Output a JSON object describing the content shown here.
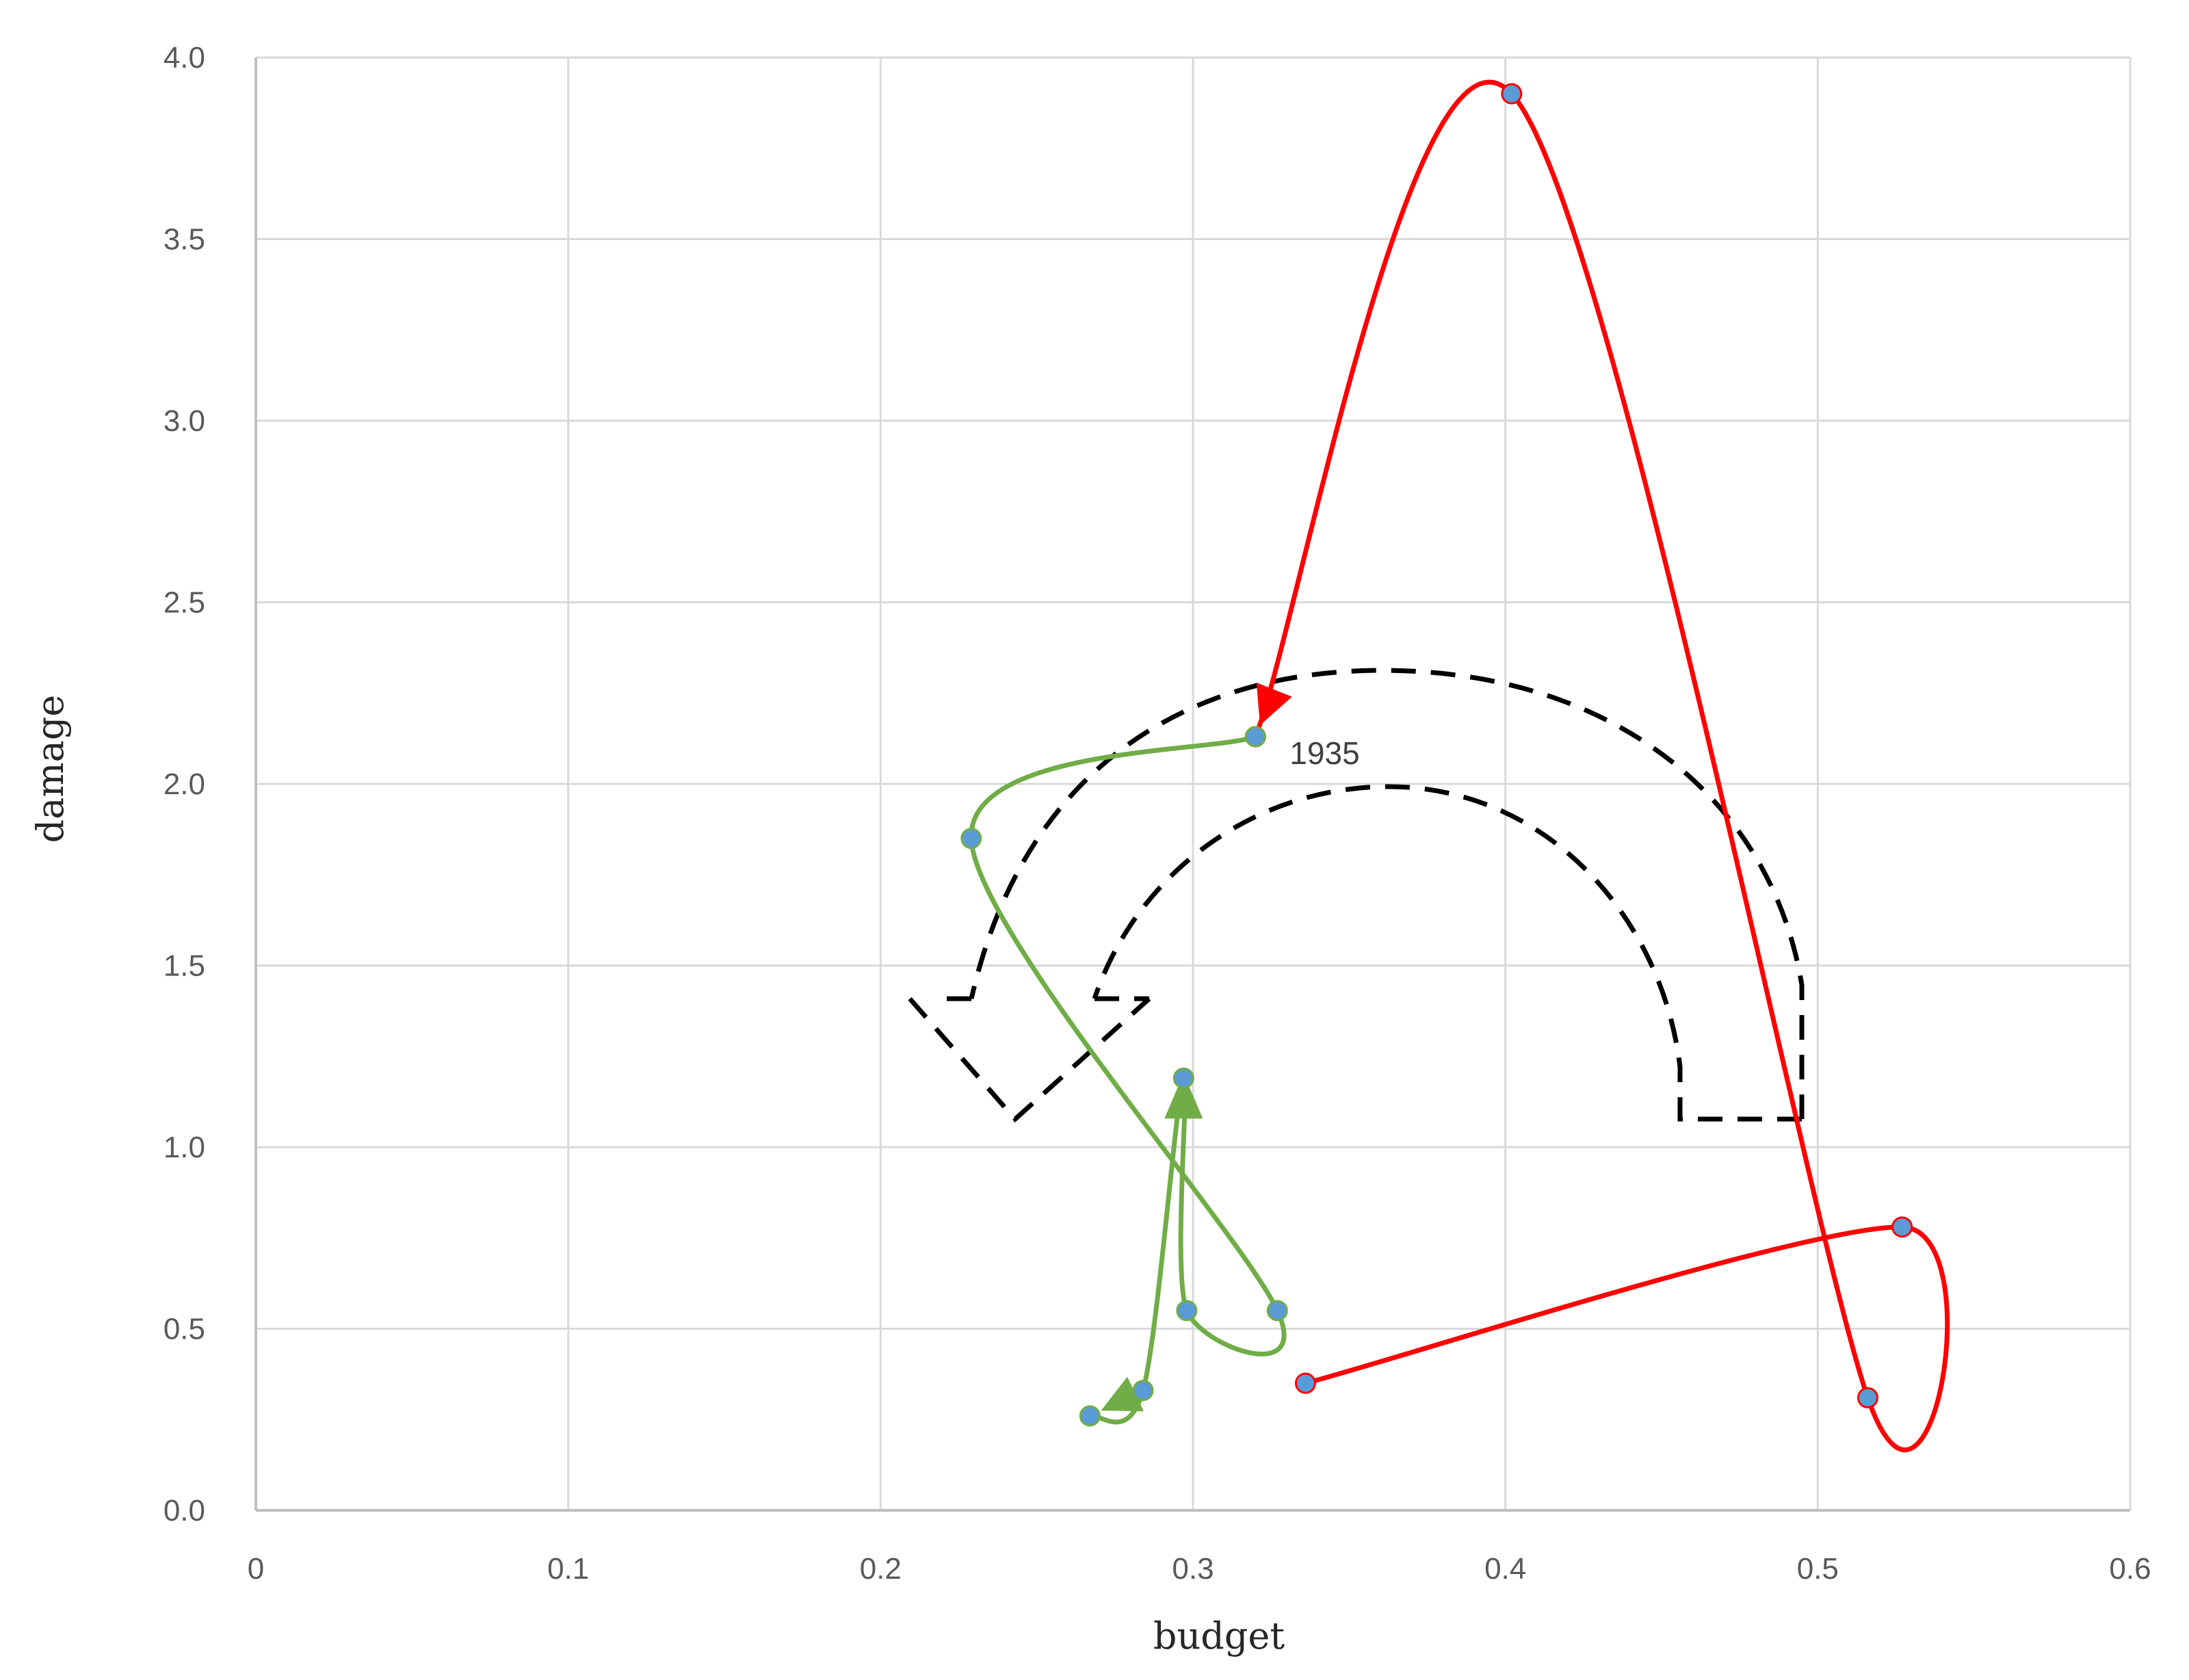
{
  "chart_data": {
    "type": "scatter",
    "title": "",
    "xlabel": "budget",
    "ylabel": "damage",
    "xlim": [
      0,
      0.6
    ],
    "ylim": [
      0,
      4.0
    ],
    "x_ticks": [
      "0",
      "0.1",
      "0.2",
      "0.3",
      "0.4",
      "0.5",
      "0.6"
    ],
    "y_ticks": [
      "0.0",
      "0.5",
      "1.0",
      "1.5",
      "2.0",
      "2.5",
      "3.0",
      "3.5",
      "4.0"
    ],
    "grid": true,
    "legend": "none",
    "series": [
      {
        "color": "#ff0000",
        "points": [
          {
            "x": 0.336,
            "y": 0.35
          },
          {
            "x": 0.527,
            "y": 0.78
          },
          {
            "x": 0.516,
            "y": 0.31
          },
          {
            "x": 0.402,
            "y": 3.9
          },
          {
            "x": 0.32,
            "y": 2.13
          }
        ]
      },
      {
        "color": "#70ad47",
        "points": [
          {
            "x": 0.32,
            "y": 2.13
          },
          {
            "x": 0.229,
            "y": 1.85
          },
          {
            "x": 0.327,
            "y": 0.55
          },
          {
            "x": 0.298,
            "y": 0.55
          },
          {
            "x": 0.297,
            "y": 1.19
          },
          {
            "x": 0.284,
            "y": 0.33
          },
          {
            "x": 0.267,
            "y": 0.26
          }
        ]
      }
    ],
    "marker_color": "#5b9bd5",
    "annotations": [
      {
        "text": "1935",
        "x": 0.32,
        "y": 2.13
      }
    ]
  }
}
